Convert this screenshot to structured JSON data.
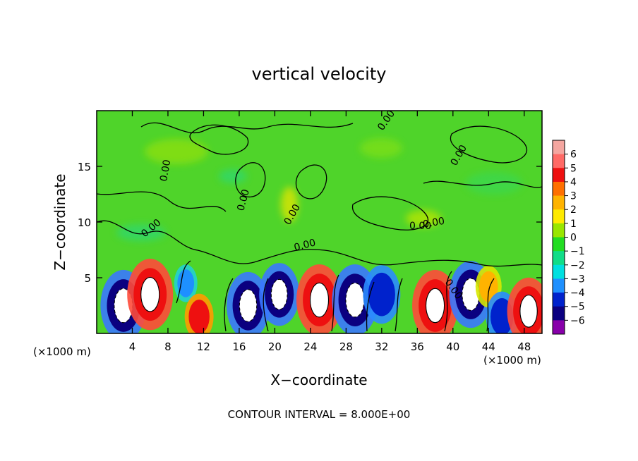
{
  "chart_data": {
    "type": "heatmap",
    "title": "vertical velocity",
    "xlabel": "X−coordinate",
    "ylabel": "Z−coordinate",
    "x_unit_left": "(×1000 m)",
    "x_unit_right": "(×1000 m)",
    "footer": "CONTOUR INTERVAL = 8.000E+00",
    "xlim": [
      0,
      50
    ],
    "ylim": [
      0,
      20
    ],
    "x_ticks": [
      4,
      8,
      12,
      16,
      20,
      24,
      28,
      32,
      36,
      40,
      44,
      48
    ],
    "y_ticks": [
      5,
      10,
      15
    ],
    "colorbar": {
      "ticks": [
        "6",
        "5",
        "4",
        "3",
        "2",
        "1",
        "0",
        "−1",
        "−2",
        "−3",
        "−4",
        "−5",
        "−6"
      ],
      "values": [
        6,
        5,
        4,
        3,
        2,
        1,
        0,
        -1,
        -2,
        -3,
        -4,
        -5,
        -6
      ],
      "colors": [
        "#f4a6a0",
        "#ff6a66",
        "#ee1010",
        "#ff6f00",
        "#ffb300",
        "#ffea00",
        "#99e600",
        "#22dd22",
        "#11dd88",
        "#00e0e0",
        "#1e90ff",
        "#0022cc",
        "#0b0080",
        "#8800aa"
      ]
    },
    "contour_labels": [
      "0.00",
      "0.00",
      "0.00",
      "0.00",
      "0.00",
      "0.00",
      "0.00",
      "0.00",
      "0.00",
      "0.00"
    ],
    "cells": [
      {
        "x": 3,
        "z": 2.5,
        "w": -10
      },
      {
        "x": 6,
        "z": 3.5,
        "w": 10
      },
      {
        "x": 10,
        "z": 4.5,
        "w": -2
      },
      {
        "x": 11.5,
        "z": 1.5,
        "w": 4
      },
      {
        "x": 17,
        "z": 2.5,
        "w": -9
      },
      {
        "x": 20.5,
        "z": 3.5,
        "w": -8
      },
      {
        "x": 25,
        "z": 3,
        "w": 10
      },
      {
        "x": 29,
        "z": 3,
        "w": -10
      },
      {
        "x": 32,
        "z": 3.5,
        "w": -7
      },
      {
        "x": 38,
        "z": 2.5,
        "w": 10
      },
      {
        "x": 42,
        "z": 3.5,
        "w": -9
      },
      {
        "x": 44,
        "z": 4.2,
        "w": 3
      },
      {
        "x": 45.5,
        "z": 1.5,
        "w": -5
      },
      {
        "x": 48.5,
        "z": 2,
        "w": 9
      }
    ]
  }
}
